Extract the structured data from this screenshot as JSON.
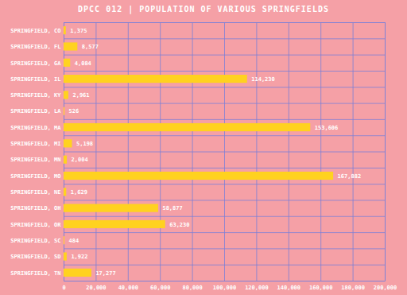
{
  "chart_data": {
    "type": "bar",
    "orientation": "horizontal",
    "title": "DPCC 012 | POPULATION OF VARIOUS SPRINGFIELDS",
    "categories": [
      "SPRINGFIELD, CO",
      "SPRINGFIELD, FL",
      "SPRINGFIELD, GA",
      "SPRINGFIELD, IL",
      "SPRINGFIELD, KY",
      "SPRINGFIELD, LA",
      "SPRINGFIELD, MA",
      "SPRINGFIELD, MI",
      "SPRINGFIELD, MN",
      "SPRINGFIELD, MO",
      "SPRINGFIELD, NE",
      "SPRINGFIELD, OH",
      "SPRINGFIELD, OR",
      "SPRINGFIELD, SC",
      "SPRINGFIELD, SD",
      "SPRINGFIELD, TN"
    ],
    "values": [
      1375,
      8577,
      4084,
      114230,
      2961,
      526,
      153606,
      5198,
      2004,
      167882,
      1629,
      58877,
      63230,
      484,
      1922,
      17277
    ],
    "value_labels": [
      "1,375",
      "8,577",
      "4,084",
      "114,230",
      "2,961",
      "526",
      "153,606",
      "5,198",
      "2,004",
      "167,882",
      "1,629",
      "58,877",
      "63,230",
      "484",
      "1,922",
      "17,277"
    ],
    "data_labels": true,
    "color": "#ffd21f",
    "xlim": [
      0,
      200000
    ],
    "xticks": [
      0,
      {
        "value": 20000,
        "label": "20,000"
      },
      {
        "value": 40000,
        "label": "40,000"
      },
      {
        "value": 60000,
        "label": "60,000"
      },
      {
        "value": 80000,
        "label": "80,000"
      },
      {
        "value": 100000,
        "label": "100,000"
      },
      {
        "value": 120000,
        "label": "120,000"
      },
      {
        "value": 140000,
        "label": "140,000"
      },
      {
        "value": 160000,
        "label": "160,000"
      },
      {
        "value": 180000,
        "label": "180,000"
      },
      {
        "value": 200000,
        "label": "200,000"
      }
    ],
    "grid": true
  }
}
